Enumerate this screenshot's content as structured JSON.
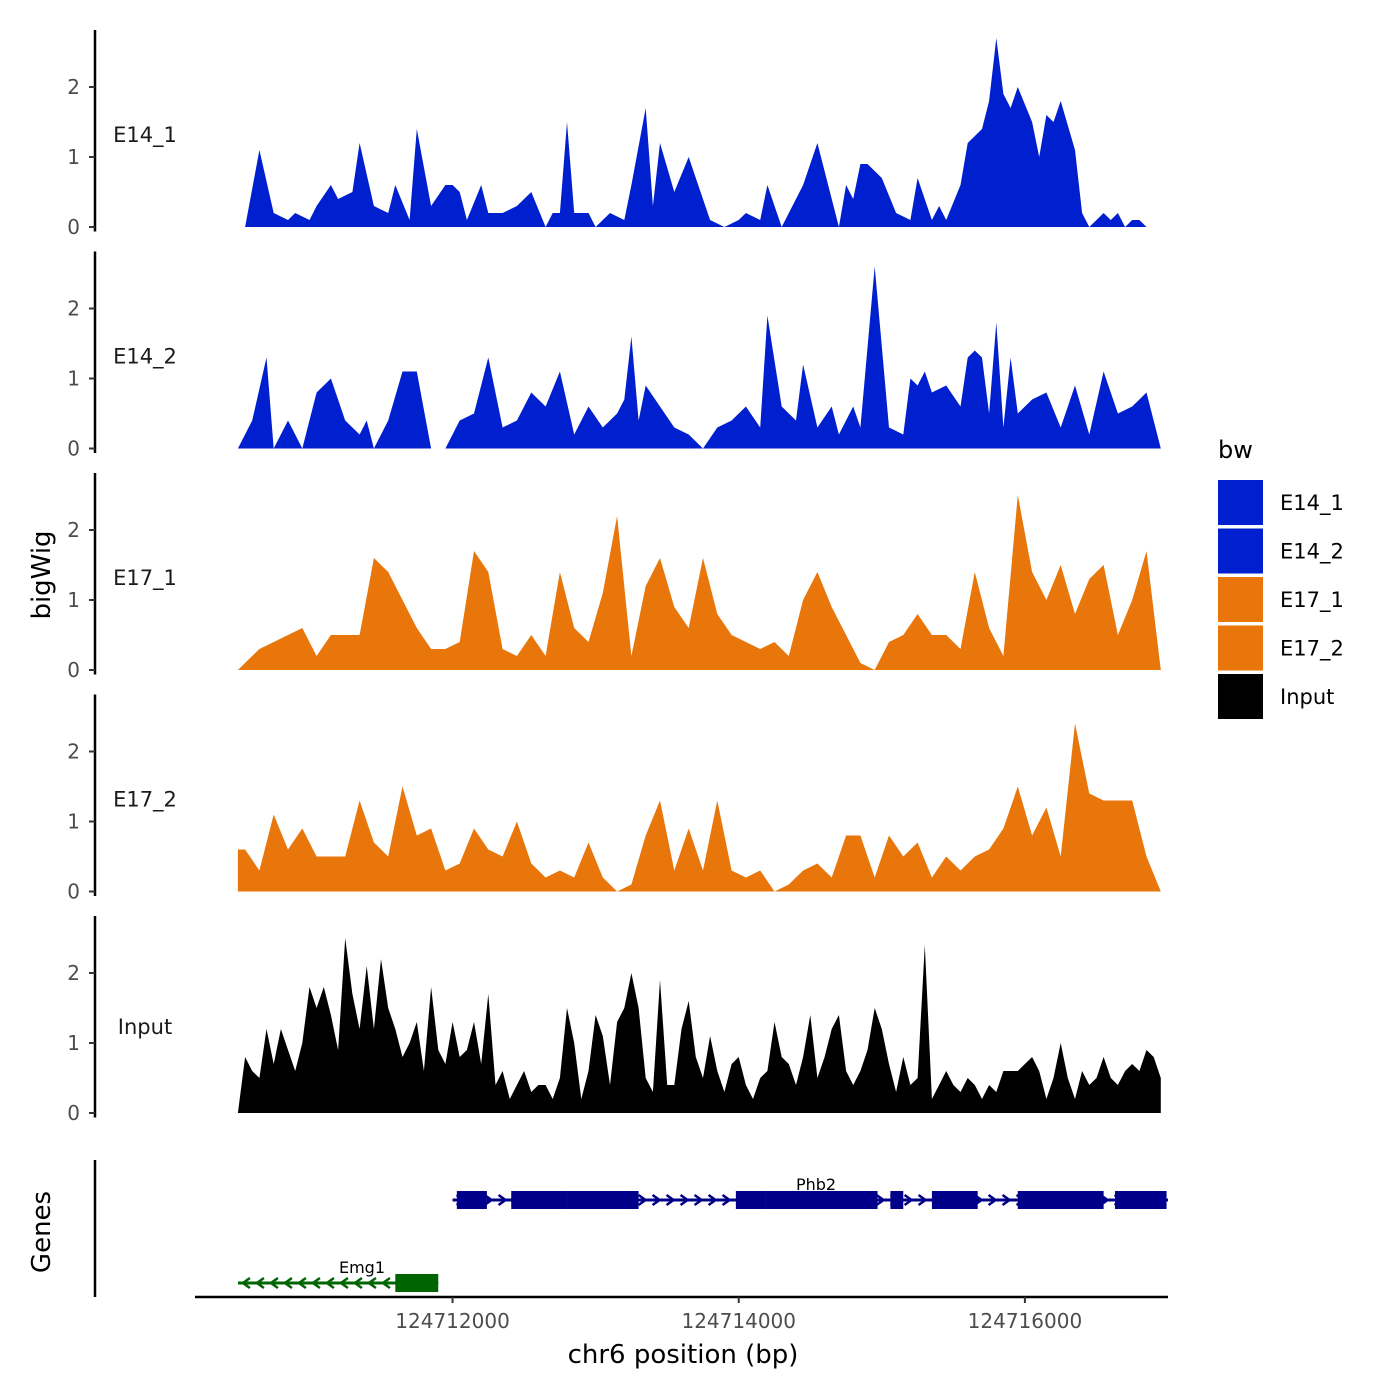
{
  "chart_data": {
    "type": "area",
    "title": "",
    "ylabel": "bigWig",
    "genes_ylabel": "Genes",
    "xlabel": "chr6 position (bp)",
    "x_range": [
      124710200,
      124717000
    ],
    "ylim": [
      0,
      2.8
    ],
    "y_ticks": [
      0,
      1,
      2
    ],
    "y_tick_labels": [
      "0",
      "1",
      "2"
    ],
    "x_ticks": [
      124712000,
      124714000,
      124716000
    ],
    "x_tick_labels": [
      "124712000",
      "124714000",
      "124716000"
    ],
    "legend": {
      "title": "bw",
      "position": "right",
      "entries": [
        {
          "label": "E14_1",
          "color": "#0020D0"
        },
        {
          "label": "E14_2",
          "color": "#0020D0"
        },
        {
          "label": "E17_1",
          "color": "#E8760A"
        },
        {
          "label": "E17_2",
          "color": "#E8760A"
        },
        {
          "label": "Input",
          "color": "#000000"
        }
      ]
    },
    "series": [
      {
        "name": "E14_1",
        "color": "#0020D0",
        "x": [
          124710550,
          124710650,
          124710750,
          124710850,
          124710900,
          124711000,
          124711050,
          124711150,
          124711200,
          124711300,
          124711350,
          124711450,
          124711550,
          124711600,
          124711700,
          124711750,
          124711850,
          124711950,
          124712000,
          124712050,
          124712100,
          124712200,
          124712250,
          124712350,
          124712450,
          124712550,
          124712650,
          124712700,
          124712750,
          124712800,
          124712850,
          124712950,
          124713000,
          124713100,
          124713200,
          124713250,
          124713350,
          124713400,
          124713450,
          124713550,
          124713650,
          124713700,
          124713800,
          124713900,
          124714000,
          124714050,
          124714150,
          124714200,
          124714300,
          124714400,
          124714450,
          124714550,
          124714700,
          124714750,
          124714800,
          124714850,
          124714900,
          124715000,
          124715100,
          124715200,
          124715250,
          124715350,
          124715400,
          124715450,
          124715550,
          124715600,
          124715700,
          124715750,
          124715800,
          124715850,
          124715900,
          124715950,
          124716050,
          124716100,
          124716150,
          124716200,
          124716250,
          124716350,
          124716400,
          124716450,
          124716500,
          124716550,
          124716600,
          124716650,
          124716700,
          124716750,
          124716800,
          124716850,
          124716900,
          124716950
        ],
        "y": [
          0,
          1.1,
          0.2,
          0.1,
          0.2,
          0.1,
          0.3,
          0.6,
          0.4,
          0.5,
          1.2,
          0.3,
          0.2,
          0.6,
          0.1,
          1.4,
          0.3,
          0.6,
          0.6,
          0.5,
          0.1,
          0.6,
          0.2,
          0.2,
          0.3,
          0.5,
          0,
          0.2,
          0.2,
          1.5,
          0.2,
          0.2,
          0,
          0.2,
          0.1,
          0.6,
          1.7,
          0.3,
          1.2,
          0.5,
          1.0,
          0.7,
          0.1,
          0,
          0.1,
          0.2,
          0.1,
          0.6,
          0,
          0.4,
          0.6,
          1.2,
          0,
          0.6,
          0.4,
          0.9,
          0.9,
          0.7,
          0.2,
          0.1,
          0.7,
          0.1,
          0.3,
          0.1,
          0.6,
          1.2,
          1.4,
          1.8,
          2.7,
          1.9,
          1.7,
          2.0,
          1.5,
          1.0,
          1.6,
          1.5,
          1.8,
          1.1,
          0.2,
          0,
          0.1,
          0.2,
          0.1,
          0.2,
          0,
          0.1,
          0.1,
          0,
          0,
          0
        ]
      },
      {
        "name": "E14_2",
        "color": "#0020D0",
        "x": [
          124710500,
          124710600,
          124710700,
          124710750,
          124710850,
          124710900,
          124710950,
          124711050,
          124711150,
          124711250,
          124711350,
          124711400,
          124711450,
          124711550,
          124711650,
          124711750,
          124711850,
          124711950,
          124712050,
          124712150,
          124712250,
          124712350,
          124712450,
          124712550,
          124712650,
          124712750,
          124712850,
          124712950,
          124713050,
          124713150,
          124713200,
          124713250,
          124713300,
          124713350,
          124713450,
          124713550,
          124713650,
          124713750,
          124713850,
          124713950,
          124714050,
          124714150,
          124714200,
          124714300,
          124714400,
          124714450,
          124714550,
          124714650,
          124714700,
          124714800,
          124714850,
          124714950,
          124715050,
          124715150,
          124715200,
          124715250,
          124715300,
          124715350,
          124715450,
          124715550,
          124715600,
          124715650,
          124715700,
          124715750,
          124715800,
          124715850,
          124715900,
          124715950,
          124716050,
          124716150,
          124716250,
          124716350,
          124716450,
          124716550,
          124716650,
          124716750,
          124716850,
          124716950
        ],
        "y": [
          0,
          0.4,
          1.3,
          0,
          0.4,
          0.2,
          0,
          0.8,
          1.0,
          0.4,
          0.2,
          0.4,
          0,
          0.4,
          1.1,
          1.1,
          0,
          0,
          0.4,
          0.5,
          1.3,
          0.3,
          0.4,
          0.8,
          0.6,
          1.1,
          0.2,
          0.6,
          0.3,
          0.5,
          0.7,
          1.6,
          0.4,
          0.9,
          0.6,
          0.3,
          0.2,
          0,
          0.3,
          0.4,
          0.6,
          0.3,
          1.9,
          0.6,
          0.4,
          1.2,
          0.3,
          0.6,
          0.2,
          0.6,
          0.3,
          2.6,
          0.3,
          0.2,
          1.0,
          0.9,
          1.1,
          0.8,
          0.9,
          0.6,
          1.3,
          1.4,
          1.3,
          0.5,
          1.8,
          0.3,
          1.3,
          0.5,
          0.7,
          0.8,
          0.3,
          0.9,
          0.2,
          1.1,
          0.5,
          0.6,
          0.8,
          0
        ]
      },
      {
        "name": "E17_1",
        "color": "#E8760A",
        "x": [
          124710500,
          124710650,
          124710750,
          124710850,
          124710950,
          124711050,
          124711150,
          124711250,
          124711350,
          124711450,
          124711550,
          124711650,
          124711750,
          124711850,
          124711950,
          124712050,
          124712150,
          124712250,
          124712350,
          124712450,
          124712550,
          124712650,
          124712750,
          124712850,
          124712950,
          124713050,
          124713150,
          124713250,
          124713350,
          124713450,
          124713550,
          124713650,
          124713750,
          124713850,
          124713950,
          124714050,
          124714150,
          124714250,
          124714350,
          124714450,
          124714550,
          124714650,
          124714750,
          124714850,
          124714950,
          124715050,
          124715150,
          124715250,
          124715350,
          124715450,
          124715550,
          124715650,
          124715750,
          124715850,
          124715950,
          124716050,
          124716150,
          124716250,
          124716350,
          124716450,
          124716550,
          124716650,
          124716750,
          124716850,
          124716950
        ],
        "y": [
          0,
          0.3,
          0.4,
          0.5,
          0.6,
          0.2,
          0.5,
          0.5,
          0.5,
          1.6,
          1.4,
          1.0,
          0.6,
          0.3,
          0.3,
          0.4,
          1.7,
          1.4,
          0.3,
          0.2,
          0.5,
          0.2,
          1.4,
          0.6,
          0.4,
          1.1,
          2.2,
          0.2,
          1.2,
          1.6,
          0.9,
          0.6,
          1.6,
          0.8,
          0.5,
          0.4,
          0.3,
          0.4,
          0.2,
          1.0,
          1.4,
          0.9,
          0.5,
          0.1,
          0,
          0.4,
          0.5,
          0.8,
          0.5,
          0.5,
          0.3,
          1.4,
          0.6,
          0.2,
          2.5,
          1.4,
          1.0,
          1.5,
          0.8,
          1.3,
          1.5,
          0.5,
          1.0,
          1.7,
          0
        ]
      },
      {
        "name": "E17_2",
        "color": "#E8760A",
        "x": [
          124710500,
          124710550,
          124710650,
          124710750,
          124710850,
          124710950,
          124711050,
          124711150,
          124711250,
          124711350,
          124711450,
          124711550,
          124711650,
          124711750,
          124711850,
          124711950,
          124712050,
          124712150,
          124712250,
          124712350,
          124712450,
          124712550,
          124712650,
          124712750,
          124712850,
          124712950,
          124713050,
          124713150,
          124713250,
          124713350,
          124713450,
          124713550,
          124713650,
          124713750,
          124713850,
          124713950,
          124714050,
          124714150,
          124714250,
          124714350,
          124714450,
          124714550,
          124714650,
          124714750,
          124714850,
          124714950,
          124715050,
          124715150,
          124715250,
          124715350,
          124715450,
          124715550,
          124715650,
          124715750,
          124715850,
          124715950,
          124716050,
          124716150,
          124716250,
          124716350,
          124716450,
          124716550,
          124716650,
          124716750,
          124716850,
          124716950
        ],
        "y": [
          0.6,
          0.6,
          0.3,
          1.1,
          0.6,
          0.9,
          0.5,
          0.5,
          0.5,
          1.3,
          0.7,
          0.5,
          1.5,
          0.8,
          0.9,
          0.3,
          0.4,
          0.9,
          0.6,
          0.5,
          1.0,
          0.4,
          0.2,
          0.3,
          0.2,
          0.7,
          0.2,
          0,
          0.1,
          0.8,
          1.3,
          0.3,
          0.9,
          0.3,
          1.3,
          0.3,
          0.2,
          0.3,
          0,
          0.1,
          0.3,
          0.4,
          0.2,
          0.8,
          0.8,
          0.2,
          0.8,
          0.5,
          0.7,
          0.2,
          0.5,
          0.3,
          0.5,
          0.6,
          0.9,
          1.5,
          0.8,
          1.2,
          0.5,
          2.4,
          1.4,
          1.3,
          1.3,
          1.3,
          0.5,
          0
        ]
      },
      {
        "name": "Input",
        "color": "#000000",
        "x": [
          124710500,
          124710550,
          124710600,
          124710650,
          124710700,
          124710750,
          124710800,
          124710850,
          124710900,
          124710950,
          124711000,
          124711050,
          124711100,
          124711150,
          124711200,
          124711250,
          124711300,
          124711350,
          124711400,
          124711450,
          124711500,
          124711550,
          124711600,
          124711650,
          124711700,
          124711750,
          124711800,
          124711850,
          124711900,
          124711950,
          124712000,
          124712050,
          124712100,
          124712150,
          124712200,
          124712250,
          124712300,
          124712350,
          124712400,
          124712450,
          124712500,
          124712550,
          124712600,
          124712650,
          124712700,
          124712750,
          124712800,
          124712850,
          124712900,
          124712950,
          124713000,
          124713050,
          124713100,
          124713150,
          124713200,
          124713250,
          124713300,
          124713350,
          124713400,
          124713450,
          124713500,
          124713550,
          124713600,
          124713650,
          124713700,
          124713750,
          124713800,
          124713850,
          124713900,
          124713950,
          124714000,
          124714050,
          124714100,
          124714150,
          124714200,
          124714250,
          124714300,
          124714350,
          124714400,
          124714450,
          124714500,
          124714550,
          124714600,
          124714650,
          124714700,
          124714750,
          124714800,
          124714850,
          124714900,
          124714950,
          124715000,
          124715050,
          124715100,
          124715150,
          124715200,
          124715250,
          124715300,
          124715350,
          124715400,
          124715450,
          124715500,
          124715550,
          124715600,
          124715650,
          124715700,
          124715750,
          124715800,
          124715850,
          124715900,
          124715950,
          124716000,
          124716050,
          124716100,
          124716150,
          124716200,
          124716250,
          124716300,
          124716350,
          124716400,
          124716450,
          124716500,
          124716550,
          124716600,
          124716650,
          124716700,
          124716750,
          124716800,
          124716850,
          124716900,
          124716950
        ],
        "y": [
          0,
          0.8,
          0.6,
          0.5,
          1.2,
          0.7,
          1.2,
          0.9,
          0.6,
          1.0,
          1.8,
          1.5,
          1.8,
          1.4,
          0.9,
          2.5,
          1.7,
          1.2,
          2.1,
          1.2,
          2.2,
          1.5,
          1.2,
          0.8,
          1.0,
          1.3,
          0.6,
          1.8,
          0.9,
          0.7,
          1.3,
          0.8,
          0.9,
          1.3,
          0.7,
          1.7,
          0.4,
          0.6,
          0.2,
          0.4,
          0.6,
          0.3,
          0.4,
          0.4,
          0.2,
          0.5,
          1.5,
          1.0,
          0.2,
          0.6,
          1.4,
          1.1,
          0.4,
          1.3,
          1.5,
          2.0,
          1.5,
          0.5,
          0.3,
          1.9,
          0.4,
          0.4,
          1.2,
          1.6,
          0.8,
          0.5,
          1.1,
          0.6,
          0.3,
          0.7,
          0.8,
          0.4,
          0.2,
          0.5,
          0.6,
          1.3,
          0.8,
          0.7,
          0.4,
          0.8,
          1.4,
          0.5,
          0.8,
          1.2,
          1.4,
          0.6,
          0.4,
          0.6,
          0.9,
          1.5,
          1.2,
          0.7,
          0.3,
          0.8,
          0.4,
          0.5,
          2.4,
          0.2,
          0.4,
          0.6,
          0.4,
          0.3,
          0.5,
          0.4,
          0.2,
          0.4,
          0.3,
          0.6,
          0.6,
          0.6,
          0.7,
          0.8,
          0.6,
          0.2,
          0.5,
          1.0,
          0.5,
          0.2,
          0.6,
          0.4,
          0.5,
          0.8,
          0.5,
          0.4,
          0.6,
          0.7,
          0.6,
          0.9,
          0.8,
          0.5
        ]
      }
    ],
    "genes": [
      {
        "name": "Phb2",
        "strand": "+",
        "color": "#00008B",
        "row": 1,
        "start": 124712000,
        "end": 124717000,
        "exons": [
          [
            124712030,
            124712240
          ],
          [
            124712410,
            124712800
          ],
          [
            124712800,
            124713300
          ],
          [
            124713980,
            124714190
          ],
          [
            124714190,
            124714970
          ],
          [
            124715060,
            124715150
          ],
          [
            124715350,
            124715670
          ],
          [
            124715950,
            124716550
          ],
          [
            124716630,
            124716990
          ]
        ]
      },
      {
        "name": "Emg1",
        "strand": "-",
        "color": "#006400",
        "row": 2,
        "start": 124710500,
        "end": 124711900,
        "exons": [
          [
            124711600,
            124711900
          ]
        ]
      }
    ]
  }
}
